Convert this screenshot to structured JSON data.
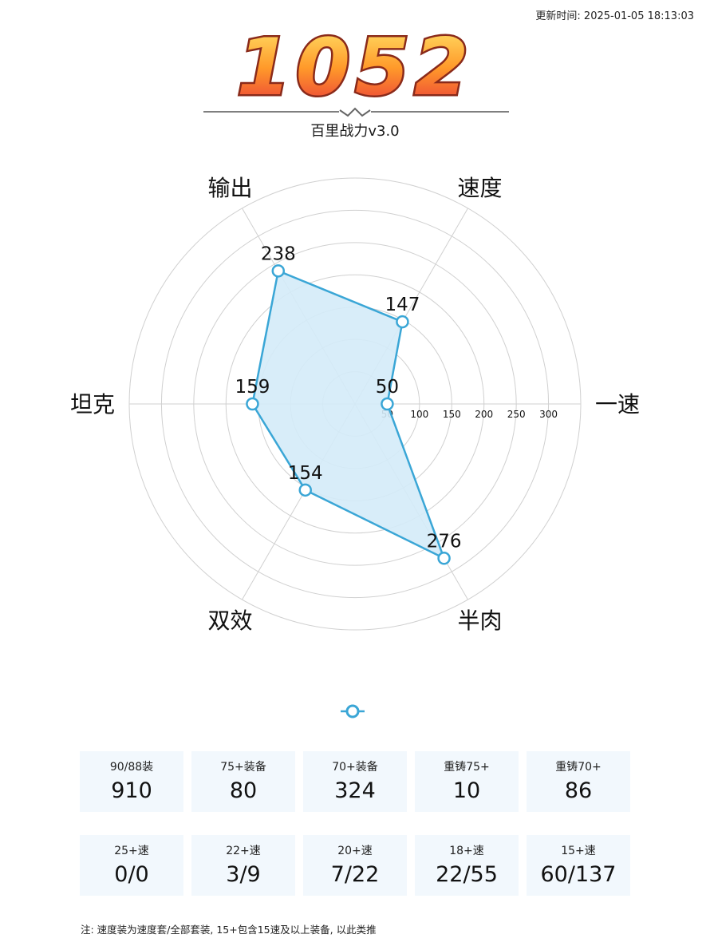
{
  "header": {
    "update_time": "更新时间: 2025-01-05 18:13:03",
    "score": "1052",
    "subtitle": "百里战力v3.0"
  },
  "colors": {
    "series": "#3aa6d6",
    "fill": "#d4ebf8",
    "grid": "#d0d0d0",
    "logo_top": "#ffdd55",
    "logo_bottom": "#e8303a"
  },
  "chart_data": {
    "type": "radar",
    "indicators": [
      "一速",
      "速度",
      "输出",
      "坦克",
      "双效",
      "半肉"
    ],
    "values": [
      50,
      147,
      238,
      159,
      154,
      276
    ],
    "radial_ticks": [
      50,
      100,
      150,
      200,
      250,
      300
    ],
    "rmin": 0,
    "rmax": 350,
    "split_number": 7,
    "legend_placement": "bottom"
  },
  "stats": {
    "row1": [
      {
        "label": "90/88装",
        "value": "910"
      },
      {
        "label": "75+装备",
        "value": "80"
      },
      {
        "label": "70+装备",
        "value": "324"
      },
      {
        "label": "重铸75+",
        "value": "10"
      },
      {
        "label": "重铸70+",
        "value": "86"
      }
    ],
    "row2": [
      {
        "label": "25+速",
        "value": "0/0"
      },
      {
        "label": "22+速",
        "value": "3/9"
      },
      {
        "label": "20+速",
        "value": "7/22"
      },
      {
        "label": "18+速",
        "value": "22/55"
      },
      {
        "label": "15+速",
        "value": "60/137"
      }
    ]
  },
  "note": "注: 速度装为速度套/全部套装, 15+包含15速及以上装备, 以此类推"
}
